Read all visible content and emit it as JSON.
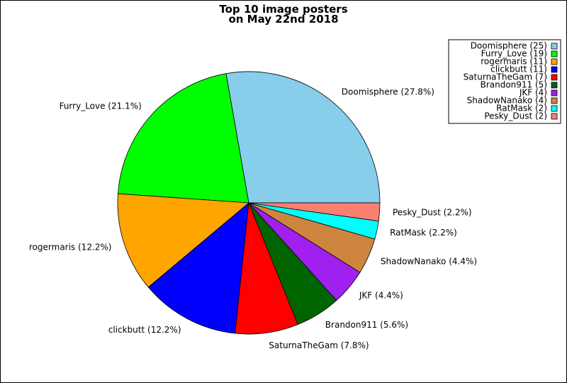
{
  "chart_data": {
    "type": "pie",
    "title": [
      "Top 10 image posters",
      "on May 22nd 2018"
    ],
    "slices": [
      {
        "name": "Doomisphere",
        "count": 25,
        "percent": "27.8%",
        "color": "#87ceeb"
      },
      {
        "name": "Furry_Love",
        "count": 19,
        "percent": "21.1%",
        "color": "#00ff00"
      },
      {
        "name": "rogermaris",
        "count": 11,
        "percent": "12.2%",
        "color": "#ffa500"
      },
      {
        "name": "clickbutt",
        "count": 11,
        "percent": "12.2%",
        "color": "#0000ff"
      },
      {
        "name": "SaturnaTheGam",
        "count": 7,
        "percent": "7.8%",
        "color": "#ff0000"
      },
      {
        "name": "Brandon911",
        "count": 5,
        "percent": "5.6%",
        "color": "#006400"
      },
      {
        "name": "JKF",
        "count": 4,
        "percent": "4.4%",
        "color": "#a020f0"
      },
      {
        "name": "ShadowNanako",
        "count": 4,
        "percent": "4.4%",
        "color": "#cd853f"
      },
      {
        "name": "RatMask",
        "count": 2,
        "percent": "2.2%",
        "color": "#00ffff"
      },
      {
        "name": "Pesky_Dust",
        "count": 2,
        "percent": "2.2%",
        "color": "#fa8072"
      }
    ],
    "legend_position": "top-right",
    "start_angle_deg": 0,
    "direction": "counterclockwise"
  }
}
